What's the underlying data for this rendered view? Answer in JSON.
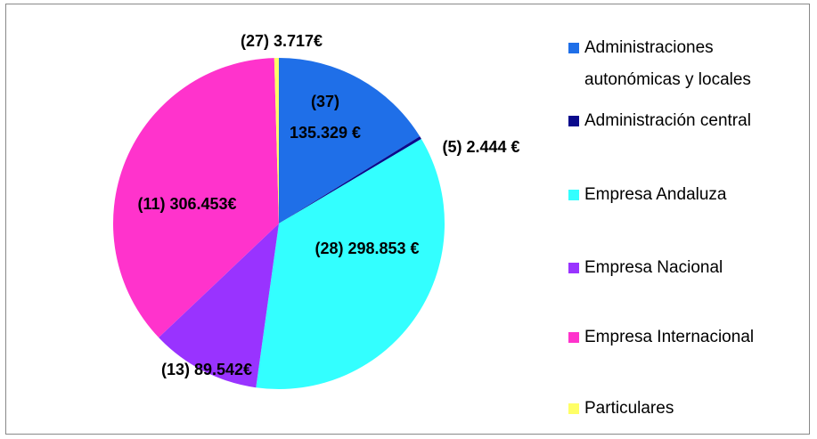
{
  "chart_data": {
    "type": "pie",
    "categories": [
      "Administraciones autonómicas y locales",
      "Administración central",
      "Empresa Andaluza",
      "Empresa Nacional",
      "Empresa Internacional",
      "Particulares"
    ],
    "values": [
      135329,
      2444,
      298853,
      89542,
      306453,
      3717
    ],
    "value_labels": [
      "(37) 135.329 €",
      "(5) 2.444 €",
      "(28) 298.853 €",
      "(13) 89.542€",
      "(11) 306.453€",
      "(27) 3.717€"
    ],
    "colors": [
      "#1f6fe8",
      "#0a0a8c",
      "#33ffff",
      "#9933ff",
      "#ff33cc",
      "#ffff66"
    ],
    "legend": "right"
  }
}
